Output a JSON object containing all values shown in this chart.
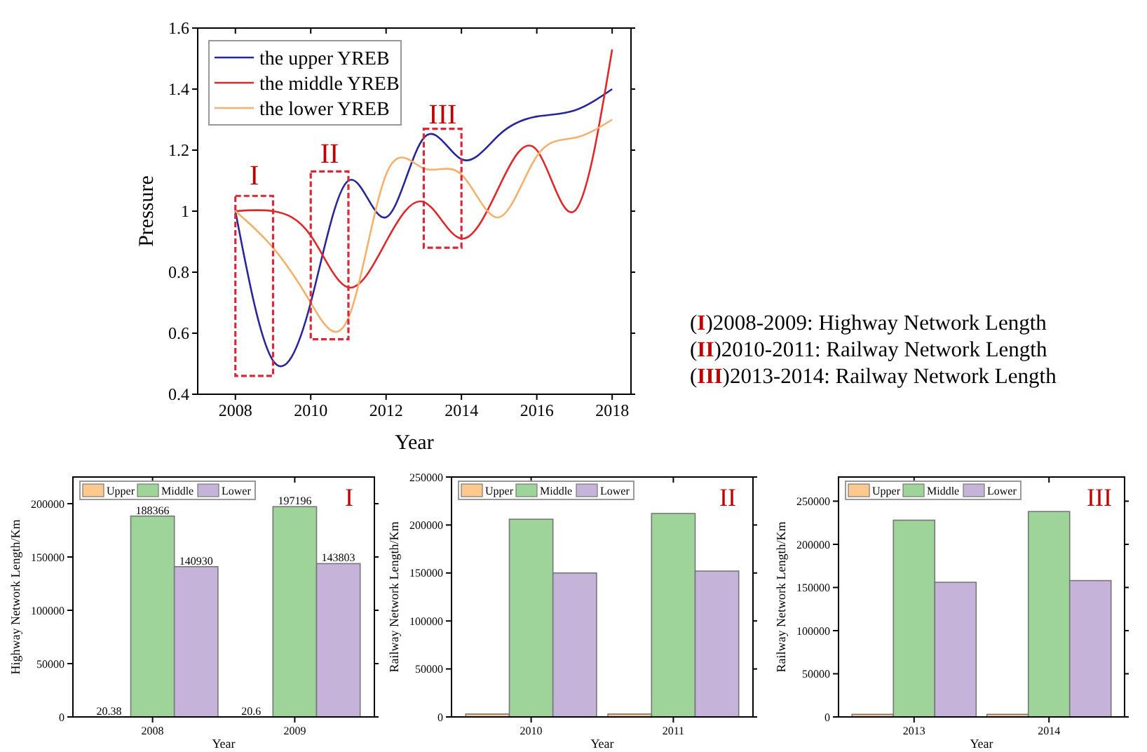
{
  "chart_data": [
    {
      "type": "line",
      "xlabel": "Year",
      "ylabel": "Pressure",
      "x": [
        2008,
        2009,
        2010,
        2011,
        2012,
        2013,
        2014,
        2015,
        2016,
        2017,
        2018
      ],
      "xlim": [
        2007,
        2018.5
      ],
      "xticks": [
        2008,
        2010,
        2012,
        2014,
        2016,
        2018
      ],
      "ylim": [
        0.4,
        1.6
      ],
      "yticks": [
        0.4,
        0.6,
        0.8,
        1.0,
        1.2,
        1.4,
        1.6
      ],
      "legend": "top left",
      "grid": false,
      "series": [
        {
          "name": "the upper YREB",
          "color": "#27279a",
          "values": [
            1.0,
            0.51,
            0.7,
            1.1,
            0.98,
            1.24,
            1.17,
            1.25,
            1.31,
            1.33,
            1.4
          ]
        },
        {
          "name": "the middle YREB",
          "color": "#e0282a",
          "values": [
            1.0,
            1.0,
            0.92,
            0.75,
            0.9,
            1.03,
            0.91,
            1.08,
            1.2,
            1.0,
            1.53
          ]
        },
        {
          "name": "the lower YREB",
          "color": "#f5b06b",
          "values": [
            1.0,
            0.88,
            0.7,
            0.65,
            1.12,
            1.14,
            1.12,
            0.98,
            1.18,
            1.24,
            1.3
          ]
        }
      ],
      "annotations": [
        "I",
        "II",
        "III",
        "(I)2008-2009: Highway Network Length",
        "(II)2010-2011: Railway Network Length",
        "(III)2013-2014: Railway Network Length"
      ]
    },
    {
      "type": "bar",
      "xlabel": "Year",
      "ylabel": "Highway Network Length/Km",
      "categories": [
        "2008",
        "2009"
      ],
      "ylim": [
        0,
        225000
      ],
      "yticks": [
        0,
        50000,
        100000,
        150000,
        200000
      ],
      "legend": "top left",
      "data_labels": true,
      "annotations": [
        "I"
      ],
      "series": [
        {
          "name": "Upper",
          "color": "#fdc98f",
          "values": [
            20.38,
            20.6
          ]
        },
        {
          "name": "Middle",
          "color": "#9ed49a",
          "values": [
            188366,
            197196
          ]
        },
        {
          "name": "Lower",
          "color": "#c5b3d9",
          "values": [
            140930,
            143803
          ]
        }
      ]
    },
    {
      "type": "bar",
      "xlabel": "Year",
      "ylabel": "Railway Network Length/Km",
      "categories": [
        "2010",
        "2011"
      ],
      "ylim": [
        0,
        250000
      ],
      "yticks": [
        0,
        50000,
        100000,
        150000,
        200000,
        250000
      ],
      "legend": "top left",
      "annotations": [
        "II"
      ],
      "series": [
        {
          "name": "Upper",
          "color": "#fdc98f",
          "values": [
            3000,
            3000
          ]
        },
        {
          "name": "Middle",
          "color": "#9ed49a",
          "values": [
            206000,
            212000
          ]
        },
        {
          "name": "Lower",
          "color": "#c5b3d9",
          "values": [
            150000,
            152000
          ]
        }
      ]
    },
    {
      "type": "bar",
      "xlabel": "Year",
      "ylabel": "Railway Network Length/Km",
      "categories": [
        "2013",
        "2014"
      ],
      "ylim": [
        0,
        278000
      ],
      "yticks": [
        0,
        50000,
        100000,
        150000,
        200000,
        250000
      ],
      "legend": "top left",
      "annotations": [
        "III"
      ],
      "series": [
        {
          "name": "Upper",
          "color": "#fdc98f",
          "values": [
            3000,
            3000
          ]
        },
        {
          "name": "Middle",
          "color": "#9ed49a",
          "values": [
            228000,
            238000
          ]
        },
        {
          "name": "Lower",
          "color": "#c5b3d9",
          "values": [
            156000,
            158000
          ]
        }
      ]
    }
  ]
}
